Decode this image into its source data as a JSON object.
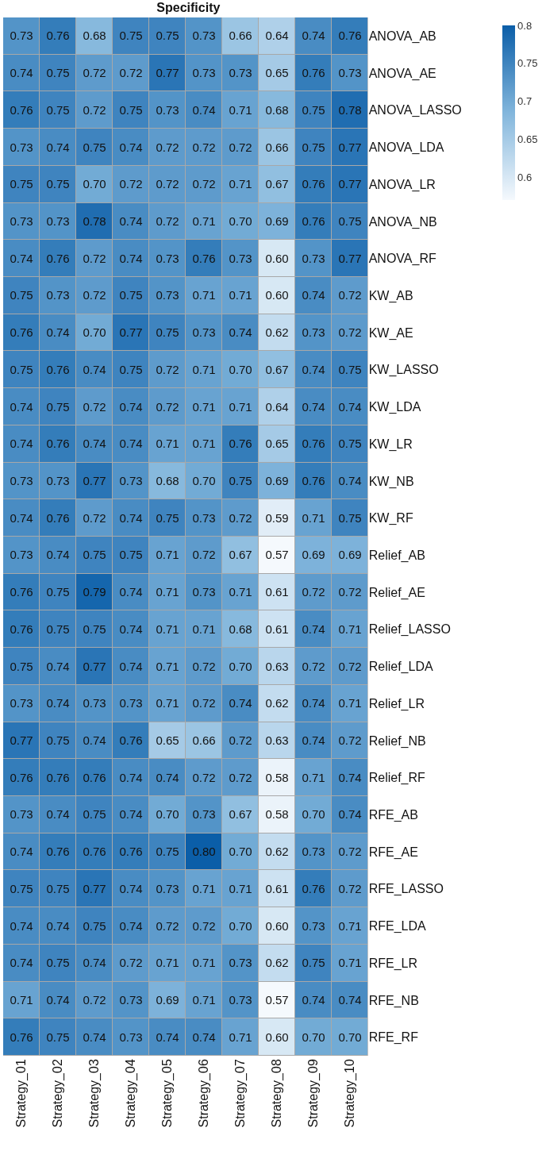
{
  "chart_data": {
    "type": "heatmap",
    "title": "Specificity",
    "categories": [
      "Strategy_01",
      "Strategy_02",
      "Strategy_03",
      "Strategy_04",
      "Strategy_05",
      "Strategy_06",
      "Strategy_07",
      "Strategy_08",
      "Strategy_09",
      "Strategy_10"
    ],
    "y_categories": [
      "ANOVA_AB",
      "ANOVA_AE",
      "ANOVA_LASSO",
      "ANOVA_LDA",
      "ANOVA_LR",
      "ANOVA_NB",
      "ANOVA_RF",
      "KW_AB",
      "KW_AE",
      "KW_LASSO",
      "KW_LDA",
      "KW_LR",
      "KW_NB",
      "KW_RF",
      "Relief_AB",
      "Relief_AE",
      "Relief_LASSO",
      "Relief_LDA",
      "Relief_LR",
      "Relief_NB",
      "Relief_RF",
      "RFE_AB",
      "RFE_AE",
      "RFE_LASSO",
      "RFE_LDA",
      "RFE_LR",
      "RFE_NB",
      "RFE_RF"
    ],
    "cells": [
      [
        0.73,
        0.76,
        0.68,
        0.75,
        0.75,
        0.73,
        0.66,
        0.64,
        0.74,
        0.76
      ],
      [
        0.74,
        0.75,
        0.72,
        0.72,
        0.77,
        0.73,
        0.73,
        0.65,
        0.76,
        0.73
      ],
      [
        0.76,
        0.75,
        0.72,
        0.75,
        0.73,
        0.74,
        0.71,
        0.68,
        0.75,
        0.78
      ],
      [
        0.73,
        0.74,
        0.75,
        0.74,
        0.72,
        0.72,
        0.72,
        0.66,
        0.75,
        0.77
      ],
      [
        0.75,
        0.75,
        0.7,
        0.72,
        0.72,
        0.72,
        0.71,
        0.67,
        0.76,
        0.77
      ],
      [
        0.73,
        0.73,
        0.78,
        0.74,
        0.72,
        0.71,
        0.7,
        0.69,
        0.76,
        0.75
      ],
      [
        0.74,
        0.76,
        0.72,
        0.74,
        0.73,
        0.76,
        0.73,
        0.6,
        0.73,
        0.77
      ],
      [
        0.75,
        0.73,
        0.72,
        0.75,
        0.73,
        0.71,
        0.71,
        0.6,
        0.74,
        0.72
      ],
      [
        0.76,
        0.74,
        0.7,
        0.77,
        0.75,
        0.73,
        0.74,
        0.62,
        0.73,
        0.72
      ],
      [
        0.75,
        0.76,
        0.74,
        0.75,
        0.72,
        0.71,
        0.7,
        0.67,
        0.74,
        0.75
      ],
      [
        0.74,
        0.75,
        0.72,
        0.74,
        0.72,
        0.71,
        0.71,
        0.64,
        0.74,
        0.74
      ],
      [
        0.74,
        0.76,
        0.74,
        0.74,
        0.71,
        0.71,
        0.76,
        0.65,
        0.76,
        0.75
      ],
      [
        0.73,
        0.73,
        0.77,
        0.73,
        0.68,
        0.7,
        0.75,
        0.69,
        0.76,
        0.74
      ],
      [
        0.74,
        0.76,
        0.72,
        0.74,
        0.75,
        0.73,
        0.72,
        0.59,
        0.71,
        0.75
      ],
      [
        0.73,
        0.74,
        0.75,
        0.75,
        0.71,
        0.72,
        0.67,
        0.57,
        0.69,
        0.69
      ],
      [
        0.76,
        0.75,
        0.79,
        0.74,
        0.71,
        0.73,
        0.71,
        0.61,
        0.72,
        0.72
      ],
      [
        0.76,
        0.75,
        0.75,
        0.74,
        0.71,
        0.71,
        0.68,
        0.61,
        0.74,
        0.71
      ],
      [
        0.75,
        0.74,
        0.77,
        0.74,
        0.71,
        0.72,
        0.7,
        0.63,
        0.72,
        0.72
      ],
      [
        0.73,
        0.74,
        0.73,
        0.73,
        0.71,
        0.72,
        0.74,
        0.62,
        0.74,
        0.71
      ],
      [
        0.77,
        0.75,
        0.74,
        0.76,
        0.65,
        0.66,
        0.72,
        0.63,
        0.74,
        0.72
      ],
      [
        0.76,
        0.76,
        0.76,
        0.74,
        0.74,
        0.72,
        0.72,
        0.58,
        0.71,
        0.74
      ],
      [
        0.73,
        0.74,
        0.75,
        0.74,
        0.7,
        0.73,
        0.67,
        0.58,
        0.7,
        0.74
      ],
      [
        0.74,
        0.76,
        0.76,
        0.76,
        0.75,
        0.8,
        0.7,
        0.62,
        0.73,
        0.72
      ],
      [
        0.75,
        0.75,
        0.77,
        0.74,
        0.73,
        0.71,
        0.71,
        0.61,
        0.76,
        0.72
      ],
      [
        0.74,
        0.74,
        0.75,
        0.74,
        0.72,
        0.72,
        0.7,
        0.6,
        0.73,
        0.71
      ],
      [
        0.74,
        0.75,
        0.74,
        0.72,
        0.71,
        0.71,
        0.73,
        0.62,
        0.75,
        0.71
      ],
      [
        0.71,
        0.74,
        0.72,
        0.73,
        0.69,
        0.71,
        0.73,
        0.57,
        0.74,
        0.74
      ],
      [
        0.76,
        0.75,
        0.74,
        0.73,
        0.74,
        0.74,
        0.71,
        0.6,
        0.7,
        0.7
      ]
    ],
    "cell_labels": [
      [
        "0.73",
        "0.76",
        "0.68",
        "0.75",
        "0.75",
        "0.73",
        "0.66",
        "0.64",
        "0.74",
        "0.76"
      ],
      [
        "0.74",
        "0.75",
        "0.72",
        "0.72",
        "0.77",
        "0.73",
        "0.73",
        "0.65",
        "0.76",
        "0.73"
      ],
      [
        "0.76",
        "0.75",
        "0.72",
        "0.75",
        "0.73",
        "0.74",
        "0.71",
        "0.68",
        "0.75",
        "0.78"
      ],
      [
        "0.73",
        "0.74",
        "0.75",
        "0.74",
        "0.72",
        "0.72",
        "0.72",
        "0.66",
        "0.75",
        "0.77"
      ],
      [
        "0.75",
        "0.75",
        "0.70",
        "0.72",
        "0.72",
        "0.72",
        "0.71",
        "0.67",
        "0.76",
        "0.77"
      ],
      [
        "0.73",
        "0.73",
        "0.78",
        "0.74",
        "0.72",
        "0.71",
        "0.70",
        "0.69",
        "0.76",
        "0.75"
      ],
      [
        "0.74",
        "0.76",
        "0.72",
        "0.74",
        "0.73",
        "0.76",
        "0.73",
        "0.60",
        "0.73",
        "0.77"
      ],
      [
        "0.75",
        "0.73",
        "0.72",
        "0.75",
        "0.73",
        "0.71",
        "0.71",
        "0.60",
        "0.74",
        "0.72"
      ],
      [
        "0.76",
        "0.74",
        "0.70",
        "0.77",
        "0.75",
        "0.73",
        "0.74",
        "0.62",
        "0.73",
        "0.72"
      ],
      [
        "0.75",
        "0.76",
        "0.74",
        "0.75",
        "0.72",
        "0.71",
        "0.70",
        "0.67",
        "0.74",
        "0.75"
      ],
      [
        "0.74",
        "0.75",
        "0.72",
        "0.74",
        "0.72",
        "0.71",
        "0.71",
        "0.64",
        "0.74",
        "0.74"
      ],
      [
        "0.74",
        "0.76",
        "0.74",
        "0.74",
        "0.71",
        "0.71",
        "0.76",
        "0.65",
        "0.76",
        "0.75"
      ],
      [
        "0.73",
        "0.73",
        "0.77",
        "0.73",
        "0.68",
        "0.70",
        "0.75",
        "0.69",
        "0.76",
        "0.74"
      ],
      [
        "0.74",
        "0.76",
        "0.72",
        "0.74",
        "0.75",
        "0.73",
        "0.72",
        "0.59",
        "0.71",
        "0.75"
      ],
      [
        "0.73",
        "0.74",
        "0.75",
        "0.75",
        "0.71",
        "0.72",
        "0.67",
        "0.57",
        "0.69",
        "0.69"
      ],
      [
        "0.76",
        "0.75",
        "0.79",
        "0.74",
        "0.71",
        "0.73",
        "0.71",
        "0.61",
        "0.72",
        "0.72"
      ],
      [
        "0.76",
        "0.75",
        "0.75",
        "0.74",
        "0.71",
        "0.71",
        "0.68",
        "0.61",
        "0.74",
        "0.71"
      ],
      [
        "0.75",
        "0.74",
        "0.77",
        "0.74",
        "0.71",
        "0.72",
        "0.70",
        "0.63",
        "0.72",
        "0.72"
      ],
      [
        "0.73",
        "0.74",
        "0.73",
        "0.73",
        "0.71",
        "0.72",
        "0.74",
        "0.62",
        "0.74",
        "0.71"
      ],
      [
        "0.77",
        "0.75",
        "0.74",
        "0.76",
        "0.65",
        "0.66",
        "0.72",
        "0.63",
        "0.74",
        "0.72"
      ],
      [
        "0.76",
        "0.76",
        "0.76",
        "0.74",
        "0.74",
        "0.72",
        "0.72",
        "0.58",
        "0.71",
        "0.74"
      ],
      [
        "0.73",
        "0.74",
        "0.75",
        "0.74",
        "0.70",
        "0.73",
        "0.67",
        "0.58",
        "0.70",
        "0.74"
      ],
      [
        "0.74",
        "0.76",
        "0.76",
        "0.76",
        "0.75",
        "0.80",
        "0.70",
        "0.62",
        "0.73",
        "0.72"
      ],
      [
        "0.75",
        "0.75",
        "0.77",
        "0.74",
        "0.73",
        "0.71",
        "0.71",
        "0.61",
        "0.76",
        "0.72"
      ],
      [
        "0.74",
        "0.74",
        "0.75",
        "0.74",
        "0.72",
        "0.72",
        "0.70",
        "0.60",
        "0.73",
        "0.71"
      ],
      [
        "0.74",
        "0.75",
        "0.74",
        "0.72",
        "0.71",
        "0.71",
        "0.73",
        "0.62",
        "0.75",
        "0.71"
      ],
      [
        "0.71",
        "0.74",
        "0.72",
        "0.73",
        "0.69",
        "0.71",
        "0.73",
        "0.57",
        "0.74",
        "0.74"
      ],
      [
        "0.76",
        "0.75",
        "0.74",
        "0.73",
        "0.74",
        "0.74",
        "0.71",
        "0.60",
        "0.70",
        "0.70"
      ]
    ],
    "clim": [
      0.57,
      0.8
    ],
    "cticks": [
      0.6,
      0.65,
      0.7,
      0.75,
      0.8
    ]
  }
}
